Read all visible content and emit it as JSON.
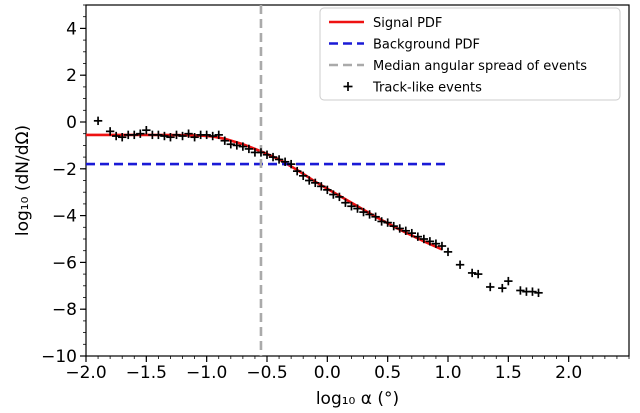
{
  "chart_data": {
    "type": "line",
    "xlabel": "log₁₀ α (°)",
    "ylabel": "log₁₀ (dN/dΩ)",
    "xlim": [
      -2.0,
      2.5
    ],
    "ylim": [
      -10,
      5
    ],
    "x_ticks": [
      -2.0,
      -1.5,
      -1.0,
      -0.5,
      0.0,
      0.5,
      1.0,
      1.5,
      2.0
    ],
    "x_tick_labels": [
      "−2.0",
      "−1.5",
      "−1.0",
      "−0.5",
      "0.0",
      "0.5",
      "1.0",
      "1.5",
      "2.0"
    ],
    "y_ticks": [
      -10,
      -8,
      -6,
      -4,
      -2,
      0,
      2,
      4
    ],
    "y_tick_labels": [
      "−10",
      "−8",
      "−6",
      "−4",
      "−2",
      "0",
      "2",
      "4"
    ],
    "grid": false,
    "legend_placement": "top-right",
    "legend": [
      {
        "label": "Signal PDF",
        "style": "solid",
        "color": "#ee1111"
      },
      {
        "label": "Background PDF",
        "style": "dashed",
        "color": "#1a1ad6"
      },
      {
        "label": "Median angular spread of events",
        "style": "dashed",
        "color": "#aaaaaa"
      },
      {
        "label": "Track-like events",
        "style": "marker",
        "color": "#000000"
      }
    ],
    "series": [
      {
        "name": "Signal PDF",
        "kind": "line",
        "color": "#ee1111",
        "x": [
          -2.0,
          -1.75,
          -1.5,
          -1.25,
          -1.05,
          -0.95,
          -0.85,
          -0.7,
          -0.55,
          -0.4,
          -0.25,
          -0.1,
          0.0,
          0.2,
          0.4,
          0.6,
          0.8,
          0.95
        ],
        "y": [
          -0.55,
          -0.55,
          -0.55,
          -0.56,
          -0.58,
          -0.62,
          -0.72,
          -0.95,
          -1.25,
          -1.6,
          -2.05,
          -2.55,
          -2.85,
          -3.45,
          -4.05,
          -4.6,
          -5.1,
          -5.45
        ]
      },
      {
        "name": "Background PDF",
        "kind": "line",
        "color": "#1a1ad6",
        "x": [
          -2.0,
          1.0
        ],
        "y": [
          -1.8,
          -1.8
        ]
      },
      {
        "name": "Median angular spread of events",
        "kind": "vline",
        "color": "#aaaaaa",
        "x": -0.55
      },
      {
        "name": "Track-like events",
        "kind": "scatter",
        "color": "#000000",
        "x": [
          -1.9,
          -1.8,
          -1.75,
          -1.7,
          -1.65,
          -1.6,
          -1.55,
          -1.5,
          -1.45,
          -1.4,
          -1.35,
          -1.3,
          -1.25,
          -1.2,
          -1.15,
          -1.1,
          -1.05,
          -1.0,
          -0.95,
          -0.9,
          -0.85,
          -0.8,
          -0.75,
          -0.7,
          -0.65,
          -0.6,
          -0.55,
          -0.5,
          -0.45,
          -0.4,
          -0.35,
          -0.3,
          -0.25,
          -0.2,
          -0.15,
          -0.1,
          -0.05,
          0.0,
          0.05,
          0.1,
          0.15,
          0.2,
          0.25,
          0.3,
          0.35,
          0.4,
          0.45,
          0.5,
          0.55,
          0.6,
          0.65,
          0.7,
          0.75,
          0.8,
          0.85,
          0.9,
          0.95,
          1.0,
          1.1,
          1.2,
          1.25,
          1.35,
          1.45,
          1.5,
          1.6,
          1.65,
          1.7,
          1.75
        ],
        "y": [
          0.05,
          -0.4,
          -0.6,
          -0.65,
          -0.55,
          -0.55,
          -0.5,
          -0.35,
          -0.55,
          -0.55,
          -0.6,
          -0.65,
          -0.55,
          -0.6,
          -0.5,
          -0.65,
          -0.55,
          -0.55,
          -0.6,
          -0.55,
          -0.8,
          -0.95,
          -1.0,
          -1.05,
          -1.15,
          -1.3,
          -1.3,
          -1.4,
          -1.5,
          -1.6,
          -1.7,
          -1.8,
          -2.1,
          -2.3,
          -2.5,
          -2.6,
          -2.75,
          -2.9,
          -3.1,
          -3.2,
          -3.45,
          -3.6,
          -3.7,
          -3.85,
          -3.95,
          -4.05,
          -4.25,
          -4.3,
          -4.45,
          -4.55,
          -4.65,
          -4.75,
          -4.9,
          -5.0,
          -5.1,
          -5.2,
          -5.3,
          -5.55,
          -6.1,
          -6.45,
          -6.5,
          -7.05,
          -7.1,
          -6.8,
          -7.2,
          -7.25,
          -7.25,
          -7.3
        ]
      }
    ]
  }
}
